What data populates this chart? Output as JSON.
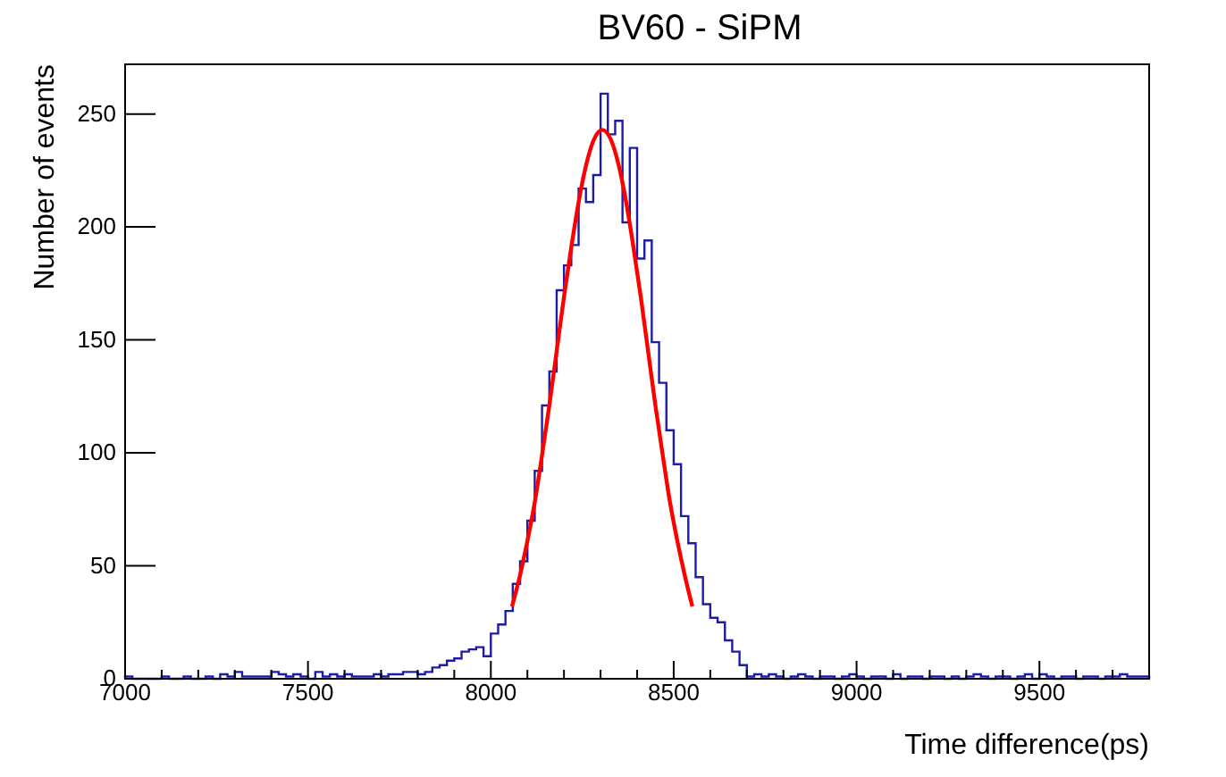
{
  "chart_data": {
    "type": "histogram",
    "title": "BV60 - SiPM",
    "xlabel": "Time difference(ps)",
    "ylabel": "Number of events",
    "xlim": [
      7000,
      9800
    ],
    "ylim": [
      0,
      272
    ],
    "xticks": [
      7000,
      {
        "value": 7100,
        "label": null
      },
      {
        "value": 7200,
        "label": null
      },
      {
        "value": 7300,
        "label": null
      },
      {
        "value": 7400,
        "label": null
      },
      7500,
      {
        "value": 7600,
        "label": null
      },
      {
        "value": 7700,
        "label": null
      },
      {
        "value": 7800,
        "label": null
      },
      {
        "value": 7900,
        "label": null
      },
      8000,
      {
        "value": 8100,
        "label": null
      },
      {
        "value": 8200,
        "label": null
      },
      {
        "value": 8300,
        "label": null
      },
      {
        "value": 8400,
        "label": null
      },
      8500,
      {
        "value": 8600,
        "label": null
      },
      {
        "value": 8700,
        "label": null
      },
      {
        "value": 8800,
        "label": null
      },
      {
        "value": 8900,
        "label": null
      },
      9000,
      {
        "value": 9100,
        "label": null
      },
      {
        "value": 9200,
        "label": null
      },
      {
        "value": 9300,
        "label": null
      },
      {
        "value": 9400,
        "label": null
      },
      9500,
      {
        "value": 9600,
        "label": null
      },
      {
        "value": 9700,
        "label": null
      }
    ],
    "yticks": [
      0,
      50,
      100,
      150,
      200,
      250
    ],
    "grid": false,
    "series": [
      {
        "color": "#1c1ca6",
        "bins": [
          7000,
          7020,
          7040,
          7060,
          7080,
          7100,
          7120,
          7140,
          7160,
          7180,
          7200,
          7220,
          7240,
          7260,
          7280,
          7300,
          7320,
          7340,
          7360,
          7380,
          7400,
          7420,
          7440,
          7460,
          7480,
          7500,
          7520,
          7540,
          7560,
          7580,
          7600,
          7620,
          7640,
          7660,
          7680,
          7700,
          7720,
          7740,
          7760,
          7780,
          7800,
          7820,
          7840,
          7860,
          7880,
          7900,
          7920,
          7940,
          7960,
          7980,
          8000,
          8020,
          8040,
          8060,
          8080,
          8100,
          8120,
          8140,
          8160,
          8180,
          8200,
          8220,
          8240,
          8260,
          8280,
          8300,
          8320,
          8340,
          8360,
          8380,
          8400,
          8420,
          8440,
          8460,
          8480,
          8500,
          8520,
          8540,
          8560,
          8580,
          8600,
          8620,
          8640,
          8660,
          8680,
          8700,
          8720,
          8740,
          8760,
          8780,
          8800,
          8820,
          8840,
          8860,
          8880,
          8900,
          8920,
          8940,
          8960,
          8980,
          9000,
          9020,
          9040,
          9060,
          9080,
          9100,
          9120,
          9140,
          9160,
          9180,
          9200,
          9220,
          9240,
          9260,
          9280,
          9300,
          9320,
          9340,
          9360,
          9380,
          9400,
          9420,
          9440,
          9460,
          9480,
          9500,
          9520,
          9540,
          9560,
          9580,
          9600,
          9620,
          9640,
          9660,
          9680,
          9700,
          9720,
          9740,
          9760,
          9780,
          9800
        ],
        "values": [
          1,
          0,
          0,
          0,
          0,
          1,
          0,
          0,
          1,
          0,
          0,
          1,
          0,
          2,
          1,
          3,
          1,
          1,
          1,
          1,
          3,
          2,
          1,
          2,
          1,
          0,
          3,
          1,
          2,
          1,
          2,
          1,
          1,
          1,
          2,
          1,
          2,
          2,
          3,
          3,
          2,
          3,
          5,
          6,
          8,
          9,
          12,
          13,
          14,
          10,
          20,
          24,
          30,
          42,
          52,
          70,
          92,
          121,
          136,
          172,
          183,
          192,
          217,
          211,
          223,
          259,
          241,
          247,
          202,
          235,
          186,
          194,
          149,
          131,
          110,
          95,
          72,
          60,
          45,
          33,
          27,
          25,
          17,
          12,
          6,
          1,
          2,
          1,
          2,
          1,
          0,
          1,
          2,
          1,
          0,
          1,
          1,
          0,
          1,
          2,
          1,
          0,
          1,
          1,
          0,
          2,
          0,
          1,
          1,
          0,
          1,
          1,
          0,
          1,
          0,
          1,
          2,
          1,
          0,
          1,
          1,
          0,
          1,
          2,
          0,
          2,
          1,
          0,
          1,
          1,
          0,
          1,
          1,
          0,
          1,
          1,
          2,
          1,
          1,
          1
        ]
      },
      {
        "type": "line",
        "color": "#ff0000",
        "x": [
          8058,
          8080,
          8100,
          8120,
          8140,
          8160,
          8180,
          8200,
          8220,
          8240,
          8260,
          8280,
          8305,
          8330,
          8350,
          8370,
          8390,
          8410,
          8430,
          8450,
          8470,
          8490,
          8510,
          8530,
          8551
        ],
        "values": [
          32,
          46,
          61,
          78,
          99,
          121,
          145,
          169,
          191,
          211,
          227,
          238,
          243,
          238,
          227,
          211,
          191,
          169,
          145,
          121,
          99,
          78,
          61,
          46,
          32
        ]
      }
    ]
  }
}
